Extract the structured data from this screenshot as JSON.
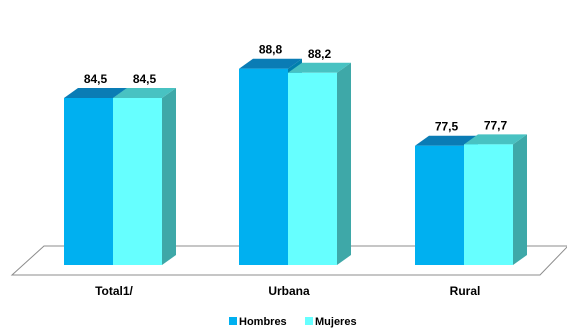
{
  "chart_data": {
    "type": "bar",
    "style": "3d-clustered-column",
    "categories": [
      "Total1/",
      "Urbana",
      "Rural"
    ],
    "series": [
      {
        "name": "Hombres",
        "values": [
          84.5,
          88.8,
          77.5
        ],
        "labels": [
          "84,5",
          "88,8",
          "77,5"
        ],
        "color": "#00B0F0"
      },
      {
        "name": "Mujeres",
        "values": [
          84.5,
          88.2,
          77.7
        ],
        "labels": [
          "84,5",
          "88,2",
          "77,7"
        ],
        "color": "#66FFFF"
      }
    ],
    "ylim": [
      60,
      95
    ],
    "grid": false,
    "legend_position": "bottom",
    "title": "",
    "xlabel": "",
    "ylabel": ""
  }
}
